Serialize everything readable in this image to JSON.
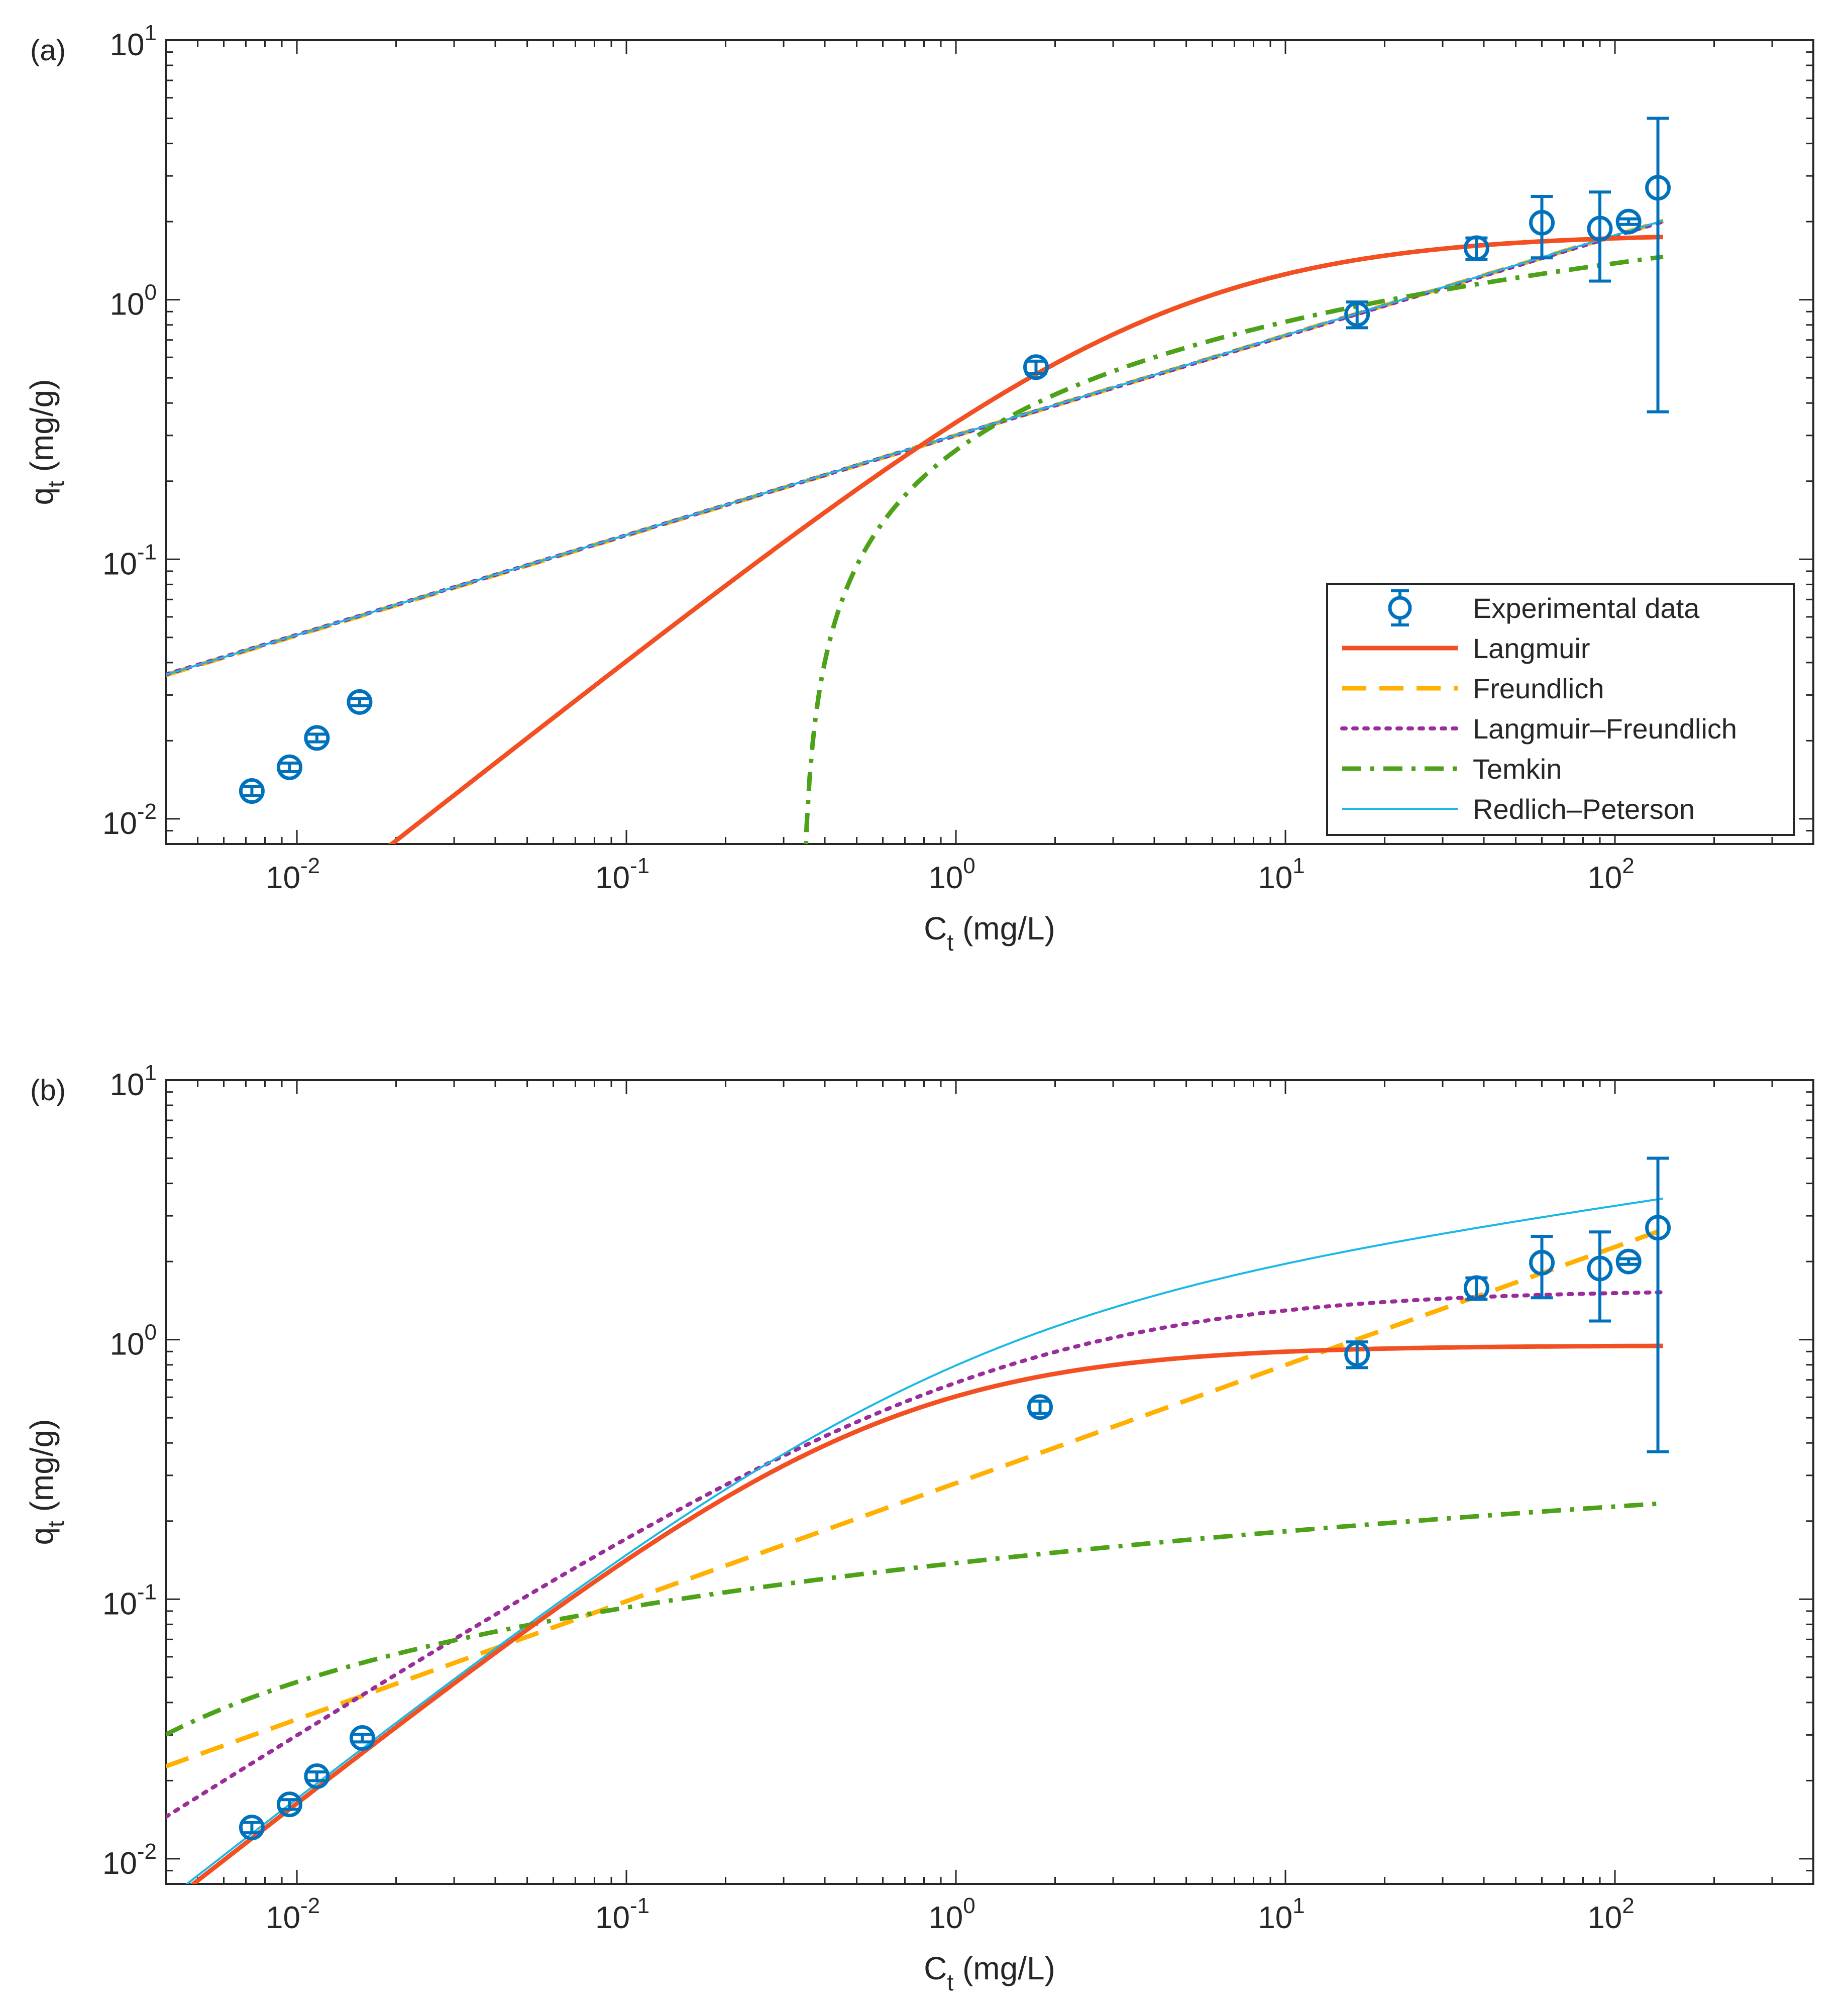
{
  "chart_data": [
    {
      "type": "scatter",
      "panel_label": "(a)",
      "xlabel": "C",
      "xlabel_sub": "t",
      "xlabel_unit": " (mg/L)",
      "ylabel": "q",
      "ylabel_sub": "t",
      "ylabel_unit": " (mg/g)",
      "xscale": "log",
      "yscale": "log",
      "xlim": [
        0.004,
        400
      ],
      "ylim": [
        0.008,
        10
      ],
      "x_ticks": [
        {
          "base": "10",
          "exp": "-2",
          "value": 0.01
        },
        {
          "base": "10",
          "exp": "-1",
          "value": 0.1
        },
        {
          "base": "10",
          "exp": "0",
          "value": 1
        },
        {
          "base": "10",
          "exp": "1",
          "value": 10
        },
        {
          "base": "10",
          "exp": "2",
          "value": 100
        }
      ],
      "y_ticks": [
        {
          "base": "10",
          "exp": "-2",
          "value": 0.01
        },
        {
          "base": "10",
          "exp": "-1",
          "value": 0.1
        },
        {
          "base": "10",
          "exp": "0",
          "value": 1
        },
        {
          "base": "10",
          "exp": "1",
          "value": 10
        }
      ],
      "grid": false,
      "legend_position": "bottom-right",
      "legend": [
        {
          "label": "Experimental data",
          "style": "errorbar-circle",
          "color": "#0072BD"
        },
        {
          "label": "Langmuir",
          "style": "solid",
          "color": "#F25022"
        },
        {
          "label": "Freundlich",
          "style": "dashed",
          "color": "#FFB000"
        },
        {
          "label": "Langmuir–Freundlich",
          "style": "dotted",
          "color": "#9B2D9B"
        },
        {
          "label": "Temkin",
          "style": "dashdot",
          "color": "#4DA21A"
        },
        {
          "label": "Redlich–Peterson",
          "style": "thin",
          "color": "#1AB8E6"
        }
      ],
      "experimental": [
        {
          "x": 0.0073,
          "y": 0.0128,
          "err_low": 0.0005,
          "err_high": 0.0005
        },
        {
          "x": 0.0095,
          "y": 0.0158,
          "err_low": 0.0006,
          "err_high": 0.0006
        },
        {
          "x": 0.0115,
          "y": 0.0205,
          "err_low": 0.0007,
          "err_high": 0.0007
        },
        {
          "x": 0.0155,
          "y": 0.0282,
          "err_low": 0.0009,
          "err_high": 0.0009
        },
        {
          "x": 1.75,
          "y": 0.55,
          "err_low": 0.03,
          "err_high": 0.03
        },
        {
          "x": 16.5,
          "y": 0.88,
          "err_low": 0.1,
          "err_high": 0.1
        },
        {
          "x": 38.0,
          "y": 1.58,
          "err_low": 0.15,
          "err_high": 0.15
        },
        {
          "x": 60.0,
          "y": 1.98,
          "err_low": 0.53,
          "err_high": 0.52
        },
        {
          "x": 90.0,
          "y": 1.88,
          "err_low": 0.7,
          "err_high": 0.72
        },
        {
          "x": 110.0,
          "y": 2.0,
          "err_low": 0.05,
          "err_high": 0.05
        },
        {
          "x": 135.0,
          "y": 2.7,
          "err_low": 2.33,
          "err_high": 2.3
        }
      ],
      "models": [
        {
          "name": "Langmuir",
          "kind": "langmuir",
          "qmax": 1.8,
          "K": 0.23
        },
        {
          "name": "Freundlich",
          "kind": "freundlich",
          "K": 0.3,
          "n": 0.385
        },
        {
          "name": "Langmuir–Freundlich",
          "kind": "freundlich",
          "K": 0.3,
          "n": 0.384
        },
        {
          "name": "Temkin",
          "kind": "temkin",
          "B": 0.243,
          "A": 2.95
        },
        {
          "name": "Redlich–Peterson",
          "kind": "freundlich",
          "K": 0.301,
          "n": 0.385
        }
      ],
      "curve_x_range": [
        0.004,
        140
      ]
    },
    {
      "type": "scatter",
      "panel_label": "(b)",
      "xlabel": "C",
      "xlabel_sub": "t",
      "xlabel_unit": " (mg/L)",
      "ylabel": "q",
      "ylabel_sub": "t",
      "ylabel_unit": " (mg/g)",
      "xscale": "log",
      "yscale": "log",
      "xlim": [
        0.004,
        400
      ],
      "ylim": [
        0.008,
        10
      ],
      "x_ticks": [
        {
          "base": "10",
          "exp": "-2",
          "value": 0.01
        },
        {
          "base": "10",
          "exp": "-1",
          "value": 0.1
        },
        {
          "base": "10",
          "exp": "0",
          "value": 1
        },
        {
          "base": "10",
          "exp": "1",
          "value": 10
        },
        {
          "base": "10",
          "exp": "2",
          "value": 100
        }
      ],
      "y_ticks": [
        {
          "base": "10",
          "exp": "-2",
          "value": 0.01
        },
        {
          "base": "10",
          "exp": "-1",
          "value": 0.1
        },
        {
          "base": "10",
          "exp": "0",
          "value": 1
        },
        {
          "base": "10",
          "exp": "1",
          "value": 10
        }
      ],
      "grid": false,
      "experimental": [
        {
          "x": 0.0073,
          "y": 0.0132,
          "err_low": 0.0006,
          "err_high": 0.0006
        },
        {
          "x": 0.0095,
          "y": 0.0162,
          "err_low": 0.0007,
          "err_high": 0.0007
        },
        {
          "x": 0.0115,
          "y": 0.0208,
          "err_low": 0.0008,
          "err_high": 0.0008
        },
        {
          "x": 0.0158,
          "y": 0.0292,
          "err_low": 0.001,
          "err_high": 0.001
        },
        {
          "x": 1.8,
          "y": 0.55,
          "err_low": 0.03,
          "err_high": 0.03
        },
        {
          "x": 16.5,
          "y": 0.88,
          "err_low": 0.1,
          "err_high": 0.1
        },
        {
          "x": 38.0,
          "y": 1.58,
          "err_low": 0.15,
          "err_high": 0.15
        },
        {
          "x": 60.0,
          "y": 1.98,
          "err_low": 0.53,
          "err_high": 0.52
        },
        {
          "x": 90.0,
          "y": 1.88,
          "err_low": 0.7,
          "err_high": 0.72
        },
        {
          "x": 110.0,
          "y": 2.0,
          "err_low": 0.05,
          "err_high": 0.05
        },
        {
          "x": 135.0,
          "y": 2.7,
          "err_low": 2.33,
          "err_high": 2.3
        }
      ],
      "models": [
        {
          "name": "Langmuir",
          "kind": "langmuir",
          "qmax": 0.95,
          "K": 1.75
        },
        {
          "name": "Freundlich",
          "kind": "freundlich",
          "K": 0.28,
          "n": 0.455
        },
        {
          "name": "Langmuir–Freundlich",
          "kind": "langfreund",
          "qmax": 1.56,
          "K": 0.73,
          "n": 1.25
        },
        {
          "name": "Temkin",
          "kind": "temkin",
          "B": 0.0195,
          "A": 1170
        },
        {
          "name": "Redlich–Peterson",
          "kind": "redlich",
          "KR": 1.75,
          "aR": 1.2,
          "g": 0.82
        }
      ],
      "curve_x_range": [
        0.004,
        140
      ]
    }
  ]
}
